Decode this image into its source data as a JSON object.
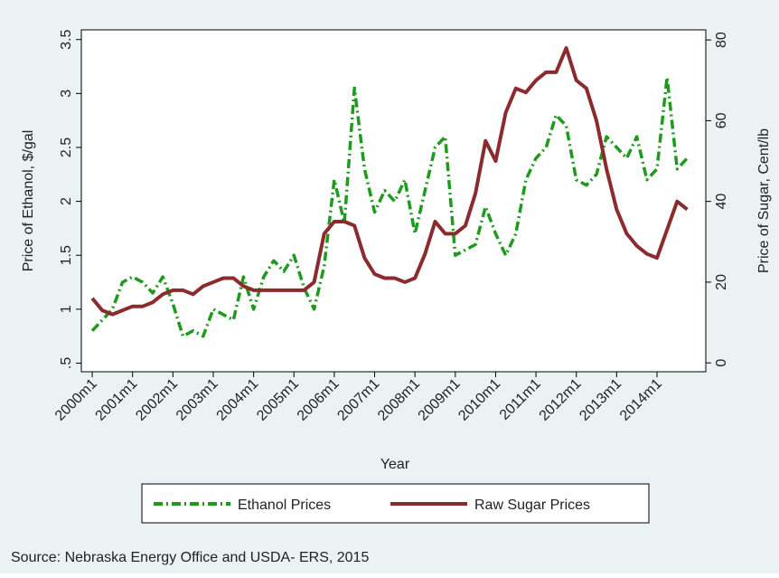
{
  "chart_data": {
    "type": "line",
    "x_label": "Year",
    "y_label": "Price of Ethanol, $/gal",
    "y2_label": "Price of Sugar, Cent/lb",
    "source": "Source: Nebraska Energy Office and USDA- ERS, 2015",
    "x": [
      2000,
      2000.25,
      2000.5,
      2000.75,
      2001,
      2001.25,
      2001.5,
      2001.75,
      2002,
      2002.25,
      2002.5,
      2002.75,
      2003,
      2003.25,
      2003.5,
      2003.75,
      2004,
      2004.25,
      2004.5,
      2004.75,
      2005,
      2005.25,
      2005.5,
      2005.75,
      2006,
      2006.25,
      2006.5,
      2006.75,
      2007,
      2007.25,
      2007.5,
      2007.75,
      2008,
      2008.25,
      2008.5,
      2008.75,
      2009,
      2009.25,
      2009.5,
      2009.75,
      2010,
      2010.25,
      2010.5,
      2010.75,
      2011,
      2011.25,
      2011.5,
      2011.75,
      2012,
      2012.25,
      2012.5,
      2012.75,
      2013,
      2013.25,
      2013.5,
      2013.75,
      2014,
      2014.25,
      2014.5,
      2014.75
    ],
    "series": [
      {
        "name": "Ethanol Prices",
        "color": "#1e9a1e",
        "dash": "10,4,2,4",
        "values": [
          0.8,
          0.9,
          1.0,
          1.25,
          1.3,
          1.25,
          1.15,
          1.3,
          1.05,
          0.75,
          0.8,
          0.75,
          1.0,
          0.95,
          0.9,
          1.3,
          1.0,
          1.3,
          1.45,
          1.35,
          1.5,
          1.2,
          1.0,
          1.4,
          2.2,
          1.8,
          3.05,
          2.3,
          1.9,
          2.1,
          2.0,
          2.2,
          1.7,
          2.1,
          2.5,
          2.6,
          1.5,
          1.55,
          1.6,
          1.95,
          1.7,
          1.5,
          1.7,
          2.2,
          2.4,
          2.5,
          2.8,
          2.7,
          2.2,
          2.15,
          2.25,
          2.6,
          2.5,
          2.4,
          2.6,
          2.2,
          2.3,
          3.15,
          2.3,
          2.4
        ]
      },
      {
        "name": "Raw Sugar Prices",
        "color": "#8b2b2e",
        "axis": "y2",
        "values": [
          16,
          13,
          12,
          13,
          14,
          14,
          15,
          17,
          18,
          18,
          17,
          19,
          20,
          21,
          21,
          19,
          18,
          18,
          18,
          18,
          18,
          18,
          20,
          32,
          35,
          35,
          34,
          26,
          22,
          21,
          21,
          20,
          21,
          27,
          35,
          32,
          32,
          34,
          42,
          55,
          50,
          62,
          68,
          67,
          70,
          72,
          72,
          78,
          70,
          68,
          60,
          48,
          38,
          32,
          29,
          27,
          26,
          33,
          40,
          38
        ]
      }
    ],
    "xlim": [
      1999.73,
      2015.21
    ],
    "xticks": [
      {
        "value": 2000,
        "label": "2000m1"
      },
      {
        "value": 2001,
        "label": "2001m1"
      },
      {
        "value": 2002,
        "label": "2002m1"
      },
      {
        "value": 2003,
        "label": "2003m1"
      },
      {
        "value": 2004,
        "label": "2004m1"
      },
      {
        "value": 2005,
        "label": "2005m1"
      },
      {
        "value": 2006,
        "label": "2006m1"
      },
      {
        "value": 2007,
        "label": "2007m1"
      },
      {
        "value": 2008,
        "label": "2008m1"
      },
      {
        "value": 2009,
        "label": "2009m1"
      },
      {
        "value": 2010,
        "label": "2010m1"
      },
      {
        "value": 2011,
        "label": "2011m1"
      },
      {
        "value": 2012,
        "label": "2012m1"
      },
      {
        "value": 2013,
        "label": "2013m1"
      },
      {
        "value": 2014,
        "label": "2014m1"
      }
    ],
    "ylim": [
      0.42,
      3.59
    ],
    "yticks": [
      {
        "value": 0.5,
        "label": ".5"
      },
      1,
      1.5,
      2,
      2.5,
      3,
      3.5
    ],
    "y2lim": [
      -2.2,
      82.5
    ],
    "y2ticks": [
      0,
      20,
      40,
      60,
      80
    ],
    "legend": "bottom"
  }
}
